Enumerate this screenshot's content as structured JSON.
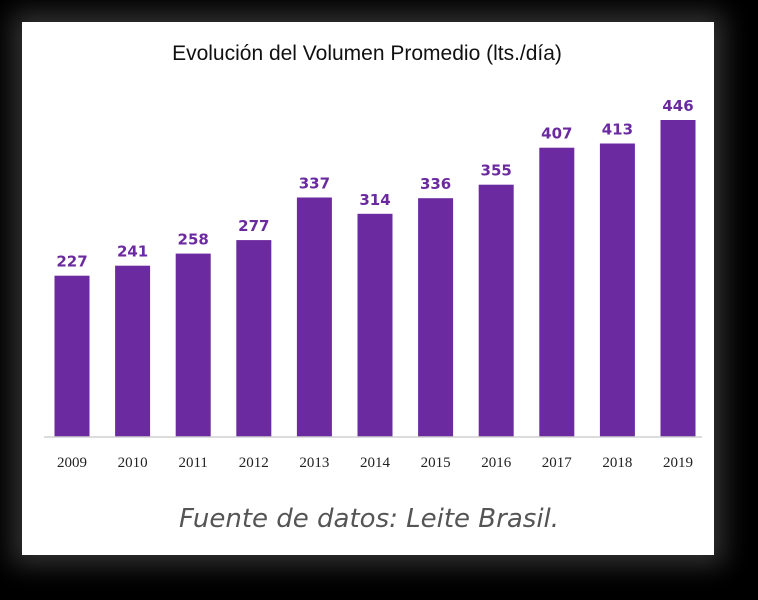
{
  "chart_data": {
    "type": "bar",
    "title": "Evolución del Volumen Promedio (lts./día)",
    "categories": [
      "2009",
      "2010",
      "2011",
      "2012",
      "2013",
      "2014",
      "2015",
      "2016",
      "2017",
      "2018",
      "2019"
    ],
    "values": [
      227,
      241,
      258,
      277,
      337,
      314,
      336,
      355,
      407,
      413,
      446
    ],
    "data_labels": [
      "227",
      "241",
      "258",
      "277",
      "337",
      "314",
      "336",
      "355",
      "407",
      "413",
      "446"
    ],
    "xlabel": "",
    "ylabel": "",
    "ylim": [
      0,
      446
    ],
    "bar_color": "#6b2aa0",
    "source": "Fuente de datos: Leite Brasil."
  }
}
